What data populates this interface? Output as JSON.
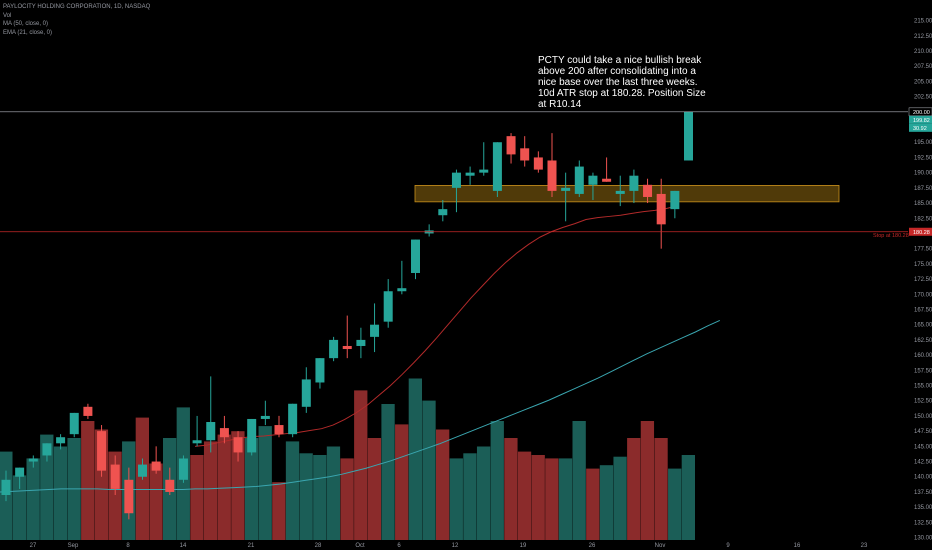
{
  "legend": {
    "symbol": "PAYLOCITY HOLDING CORPORATION, 1D, NASDAQ",
    "vol": "Vol",
    "ma": "MA (50, close, 0)",
    "ema": "EMA (21, close, 0)"
  },
  "note": "PCTY could take a nice bullish break above 200 after consolidating into a nice base over the last three weeks. 10d ATR stop at 180.28. Position Size at R10.14",
  "colors": {
    "background": "#000000",
    "up": "#26a69a",
    "down": "#ef5350",
    "vol_up": "#1b5e57",
    "vol_down": "#8b2b2b",
    "ma": "#3aa6b0",
    "ema": "#b22a2a",
    "box_fill": "#6b4d0c",
    "box_stroke": "#c9901c",
    "stop_line": "#c62828",
    "resistance_line": "#b2b5be"
  },
  "chart_data": {
    "type": "candlestick",
    "y_axis": {
      "ticks": [
        "130.00",
        "132.50",
        "135.00",
        "137.50",
        "140.00",
        "142.50",
        "145.00",
        "147.50",
        "150.00",
        "152.50",
        "155.00",
        "157.50",
        "160.00",
        "162.50",
        "165.00",
        "167.50",
        "170.00",
        "172.50",
        "175.00",
        "177.50",
        "180.00",
        "182.50",
        "185.00",
        "187.50",
        "190.00",
        "192.50",
        "195.00",
        "197.50",
        "200.00",
        "202.50",
        "205.00",
        "207.50",
        "210.00",
        "212.50",
        "215.00"
      ],
      "ylim": [
        129.6,
        217.4
      ]
    },
    "x_axis": {
      "labels": [
        "27",
        "Sep",
        "8",
        "14",
        "21",
        "28",
        "Oct",
        "6",
        "12",
        "19",
        "26",
        "Nov",
        "9",
        "16",
        "23"
      ]
    },
    "candles": [
      {
        "o": 137.0,
        "h": 141.0,
        "l": 136.0,
        "c": 139.5
      },
      {
        "o": 140.0,
        "h": 141.5,
        "l": 138.0,
        "c": 141.5
      },
      {
        "o": 142.5,
        "h": 143.5,
        "l": 141.5,
        "c": 143.0
      },
      {
        "o": 143.5,
        "h": 145.5,
        "l": 142.5,
        "c": 145.5
      },
      {
        "o": 145.5,
        "h": 147.0,
        "l": 144.5,
        "c": 146.5
      },
      {
        "o": 147.0,
        "h": 150.5,
        "l": 146.5,
        "c": 150.5
      },
      {
        "o": 151.5,
        "h": 152.0,
        "l": 149.5,
        "c": 150.0
      },
      {
        "o": 147.5,
        "h": 148.5,
        "l": 140.0,
        "c": 141.0
      },
      {
        "o": 142.0,
        "h": 143.5,
        "l": 137.0,
        "c": 138.0
      },
      {
        "o": 139.5,
        "h": 141.5,
        "l": 133.0,
        "c": 134.0
      },
      {
        "o": 140.0,
        "h": 143.0,
        "l": 139.5,
        "c": 142.0
      },
      {
        "o": 142.5,
        "h": 145.0,
        "l": 140.5,
        "c": 141.0
      },
      {
        "o": 139.5,
        "h": 141.5,
        "l": 137.0,
        "c": 137.5
      },
      {
        "o": 139.5,
        "h": 143.5,
        "l": 139.0,
        "c": 143.0
      },
      {
        "o": 145.5,
        "h": 150.0,
        "l": 145.0,
        "c": 146.0
      },
      {
        "o": 146.0,
        "h": 156.5,
        "l": 144.0,
        "c": 149.0
      },
      {
        "o": 148.0,
        "h": 150.0,
        "l": 145.5,
        "c": 146.5
      },
      {
        "o": 146.5,
        "h": 147.5,
        "l": 142.5,
        "c": 144.0
      },
      {
        "o": 144.0,
        "h": 149.5,
        "l": 143.5,
        "c": 149.5
      },
      {
        "o": 149.5,
        "h": 152.5,
        "l": 148.5,
        "c": 150.0
      },
      {
        "o": 148.5,
        "h": 150.0,
        "l": 146.5,
        "c": 147.0
      },
      {
        "o": 147.0,
        "h": 152.0,
        "l": 146.5,
        "c": 152.0
      },
      {
        "o": 151.5,
        "h": 158.0,
        "l": 150.5,
        "c": 156.0
      },
      {
        "o": 155.5,
        "h": 159.5,
        "l": 154.5,
        "c": 159.5
      },
      {
        "o": 159.5,
        "h": 163.0,
        "l": 159.0,
        "c": 162.5
      },
      {
        "o": 161.5,
        "h": 166.5,
        "l": 159.5,
        "c": 161.0
      },
      {
        "o": 161.5,
        "h": 164.5,
        "l": 159.5,
        "c": 162.5
      },
      {
        "o": 163.0,
        "h": 168.5,
        "l": 160.5,
        "c": 165.0
      },
      {
        "o": 165.5,
        "h": 172.5,
        "l": 164.5,
        "c": 170.5
      },
      {
        "o": 170.5,
        "h": 175.5,
        "l": 170.0,
        "c": 171.0
      },
      {
        "o": 173.5,
        "h": 179.0,
        "l": 172.5,
        "c": 179.0
      },
      {
        "o": 180.0,
        "h": 181.5,
        "l": 179.5,
        "c": 180.5
      },
      {
        "o": 183.0,
        "h": 185.5,
        "l": 182.0,
        "c": 184.0
      },
      {
        "o": 187.5,
        "h": 190.5,
        "l": 183.5,
        "c": 190.0
      },
      {
        "o": 189.5,
        "h": 191.0,
        "l": 188.0,
        "c": 190.0
      },
      {
        "o": 190.0,
        "h": 195.0,
        "l": 189.5,
        "c": 190.5
      },
      {
        "o": 187.0,
        "h": 195.0,
        "l": 186.0,
        "c": 195.0
      },
      {
        "o": 196.0,
        "h": 196.5,
        "l": 191.5,
        "c": 193.0
      },
      {
        "o": 194.0,
        "h": 196.0,
        "l": 191.0,
        "c": 192.0
      },
      {
        "o": 192.5,
        "h": 193.5,
        "l": 190.0,
        "c": 190.5
      },
      {
        "o": 192.0,
        "h": 196.5,
        "l": 186.0,
        "c": 187.0
      },
      {
        "o": 187.0,
        "h": 190.0,
        "l": 182.0,
        "c": 187.5
      },
      {
        "o": 186.5,
        "h": 192.0,
        "l": 186.0,
        "c": 191.0
      },
      {
        "o": 188.0,
        "h": 190.0,
        "l": 185.5,
        "c": 189.5
      },
      {
        "o": 189.0,
        "h": 192.5,
        "l": 188.5,
        "c": 188.5
      },
      {
        "o": 186.5,
        "h": 189.5,
        "l": 184.5,
        "c": 187.0
      },
      {
        "o": 187.0,
        "h": 190.5,
        "l": 185.0,
        "c": 189.5
      },
      {
        "o": 188.0,
        "h": 189.0,
        "l": 185.0,
        "c": 186.0
      },
      {
        "o": 186.5,
        "h": 189.0,
        "l": 177.5,
        "c": 181.5
      },
      {
        "o": 184.0,
        "h": 187.0,
        "l": 182.5,
        "c": 187.0
      },
      {
        "o": 192.0,
        "h": 200.0,
        "l": 192.0,
        "c": 200.0
      }
    ],
    "volume_direction": [
      "up",
      "up",
      "up",
      "up",
      "up",
      "up",
      "down",
      "down",
      "down",
      "up",
      "down",
      "down",
      "up",
      "up",
      "down",
      "down",
      "down",
      "down",
      "up",
      "up",
      "down",
      "up",
      "up",
      "up",
      "up",
      "down",
      "down",
      "down",
      "up",
      "down",
      "up",
      "up",
      "down",
      "up",
      "up",
      "up",
      "up",
      "down",
      "down",
      "down",
      "down",
      "up",
      "up",
      "down",
      "up",
      "up",
      "down",
      "down",
      "down",
      "up",
      "up"
    ],
    "volume_relative": [
      0.52,
      0.38,
      0.48,
      0.62,
      0.55,
      0.6,
      0.7,
      0.65,
      0.52,
      0.58,
      0.72,
      0.45,
      0.6,
      0.78,
      0.5,
      0.58,
      0.62,
      0.64,
      0.6,
      0.67,
      0.34,
      0.58,
      0.51,
      0.5,
      0.55,
      0.48,
      0.88,
      0.6,
      0.8,
      0.68,
      0.95,
      0.82,
      0.65,
      0.48,
      0.51,
      0.55,
      0.7,
      0.6,
      0.52,
      0.5,
      0.48,
      0.48,
      0.7,
      0.42,
      0.44,
      0.49,
      0.6,
      0.7,
      0.6,
      0.42,
      0.5
    ],
    "ma_50": [
      137.5,
      137.6,
      137.7,
      137.8,
      137.9,
      138.0,
      138.0,
      138.0,
      138.0,
      137.9,
      137.9,
      137.9,
      137.9,
      137.9,
      137.9,
      137.9,
      138.0,
      138.0,
      138.1,
      138.2,
      138.3,
      138.4,
      138.6,
      138.8,
      139.1,
      139.4,
      139.7,
      140.0,
      140.4,
      140.9,
      141.4,
      142.0,
      142.6,
      143.3,
      144.0,
      144.7,
      145.4,
      146.2,
      147.0,
      147.8,
      148.6,
      149.4,
      150.2,
      151.0,
      151.8,
      152.6,
      153.5,
      154.4,
      155.3,
      156.2,
      157.2,
      158.2,
      159.2,
      160.2,
      161.1,
      162.0,
      162.9,
      163.8,
      164.8,
      165.7
    ],
    "ema_21": [
      145.0,
      145.2,
      145.6,
      146.0,
      146.4,
      146.6,
      146.7,
      146.9,
      147.1,
      147.3,
      147.6,
      147.9,
      148.5,
      149.4,
      150.5,
      151.8,
      153.4,
      155.0,
      156.8,
      158.7,
      160.7,
      162.8,
      165.0,
      167.2,
      169.4,
      171.4,
      173.4,
      175.2,
      176.8,
      178.2,
      179.4,
      180.3,
      181.0,
      181.6,
      182.3,
      182.6,
      182.8,
      183.0,
      183.3,
      183.6,
      183.8,
      184.1,
      184.6
    ],
    "zone": {
      "low": 185.2,
      "high": 187.9
    },
    "resistance": {
      "value": 200.0,
      "label": "200.00"
    },
    "stop": {
      "value": 180.28,
      "label": "Stop at 180.28",
      "tag": "180.28"
    },
    "price_tags": [
      {
        "label": "200.00",
        "color": "#ffffff"
      },
      {
        "label": "199.82",
        "color": "#26a69a"
      },
      {
        "label": "30.92",
        "color": "#26a69a"
      }
    ]
  }
}
